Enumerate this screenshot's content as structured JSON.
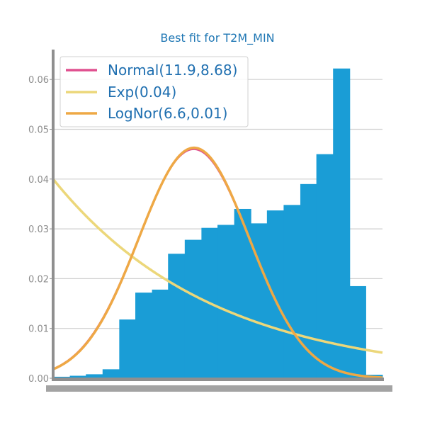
{
  "chart_data": {
    "type": "bar",
    "title": "Best fit for T2M_MIN",
    "xlabel": "",
    "ylabel": "",
    "xlim": [
      -10,
      41.3
    ],
    "ylim": [
      0,
      0.066
    ],
    "yticks": [
      0.0,
      0.01,
      0.02,
      0.03,
      0.04,
      0.05,
      0.06
    ],
    "ytick_labels": [
      "0.00",
      "0.01",
      "0.02",
      "0.03",
      "0.04",
      "0.05",
      "0.06"
    ],
    "grid": "horizontal",
    "legend_position": "top-left",
    "histogram": {
      "color": "#1a9dd6",
      "bin_edges": [
        -10.0,
        -7.4,
        -4.9,
        -2.3,
        0.3,
        2.8,
        5.4,
        7.9,
        10.5,
        13.1,
        15.6,
        18.2,
        20.8,
        23.3,
        25.9,
        28.5,
        31.0,
        33.6,
        36.2,
        38.7,
        41.3
      ],
      "densities": [
        0.0003,
        0.0005,
        0.0008,
        0.0018,
        0.0118,
        0.0172,
        0.0178,
        0.025,
        0.0278,
        0.0302,
        0.0308,
        0.034,
        0.0311,
        0.0337,
        0.0348,
        0.039,
        0.045,
        0.0622,
        0.0185,
        0.0007
      ]
    },
    "series": [
      {
        "name": "Normal(11.9,8.68)",
        "type": "normal",
        "params": [
          11.9,
          8.68
        ],
        "color": "#e0508f"
      },
      {
        "name": "Exp(0.04)",
        "type": "exponential",
        "params": [
          0.04
        ],
        "color": "#ecd77a"
      },
      {
        "name": "LogNor(6.6,0.01)",
        "type": "lognormal",
        "params": [
          6.6,
          0.01
        ],
        "color": "#eea845"
      }
    ]
  }
}
